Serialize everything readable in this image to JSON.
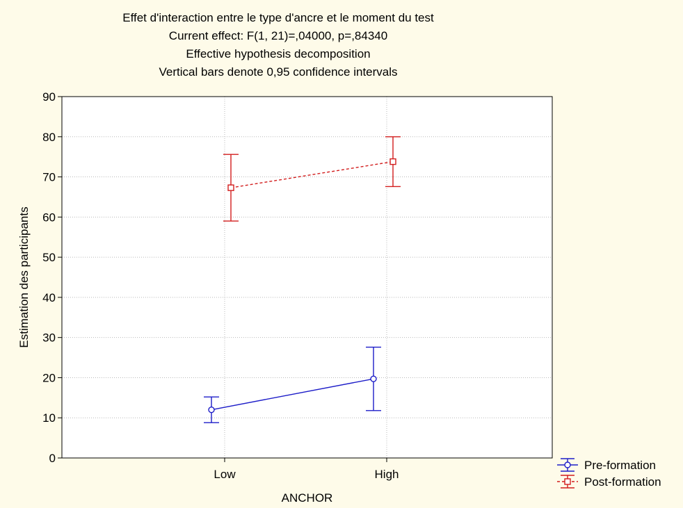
{
  "chart_data": {
    "type": "line",
    "title": [
      "Effet d'interaction entre le type d'ancre et le moment du test",
      "Current effect: F(1, 21)=,04000, p=,84340",
      "Effective hypothesis decomposition",
      "Vertical bars denote 0,95 confidence intervals"
    ],
    "xlabel": "ANCHOR",
    "ylabel": "Estimation des participants",
    "categories": [
      "Low",
      "High"
    ],
    "ylim": [
      0,
      90
    ],
    "yticks": [
      0,
      10,
      20,
      30,
      40,
      50,
      60,
      70,
      80,
      90
    ],
    "grid": true,
    "legend_position": "bottom-right",
    "series": [
      {
        "name": "Pre-formation",
        "color": "#1c1cc8",
        "line_style": "solid",
        "marker": "circle",
        "values": [
          12.0,
          19.7
        ],
        "ci_low": [
          8.8,
          11.8
        ],
        "ci_high": [
          15.2,
          27.6
        ]
      },
      {
        "name": "Post-formation",
        "color": "#d21c1c",
        "line_style": "dashed",
        "marker": "square",
        "values": [
          67.3,
          73.8
        ],
        "ci_low": [
          59.0,
          67.6
        ],
        "ci_high": [
          75.6,
          80.0
        ]
      }
    ]
  }
}
